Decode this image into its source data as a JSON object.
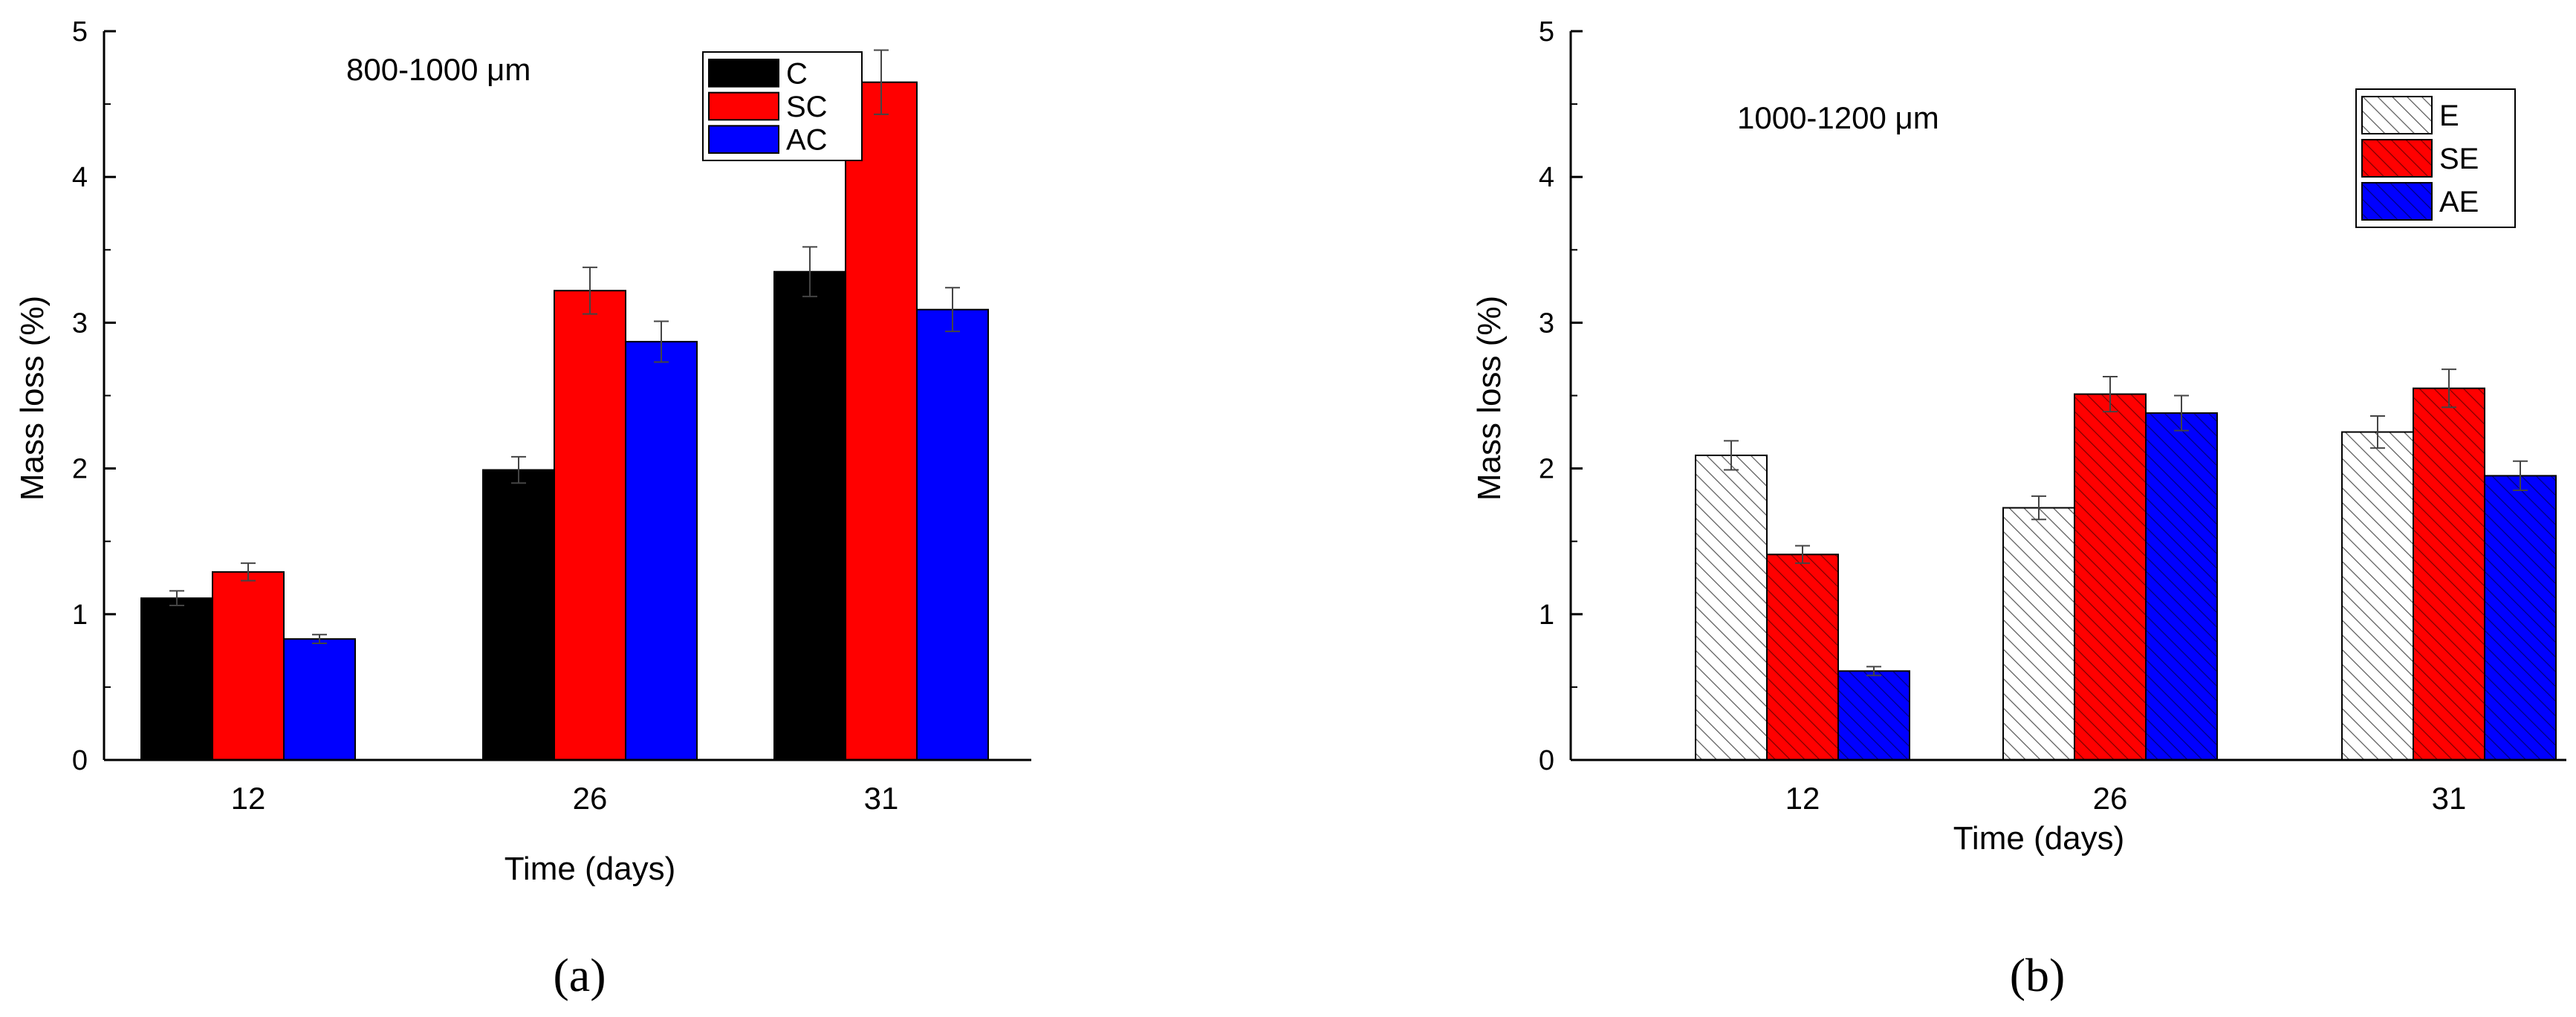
{
  "chart_data": [
    {
      "type": "bar",
      "panel_label": "(a)",
      "annotation": "800-1000 μm",
      "xlabel": "Time (days)",
      "ylabel": "Mass loss (%)",
      "categories": [
        "12",
        "26",
        "31"
      ],
      "ylim": [
        0,
        5
      ],
      "yticks": [
        "0",
        "1",
        "2",
        "3",
        "4",
        "5"
      ],
      "legend_position": "top-right",
      "series": [
        {
          "name": "C",
          "values": [
            1.11,
            1.99,
            3.35
          ],
          "errors": [
            0.05,
            0.09,
            0.17
          ],
          "color": "#000000",
          "pattern": "solid"
        },
        {
          "name": "SC",
          "values": [
            1.29,
            3.22,
            4.65
          ],
          "errors": [
            0.06,
            0.16,
            0.22
          ],
          "color": "#ff0000",
          "pattern": "solid"
        },
        {
          "name": "AC",
          "values": [
            0.83,
            2.87,
            3.09
          ],
          "errors": [
            0.03,
            0.14,
            0.15
          ],
          "color": "#0000ff",
          "pattern": "solid"
        }
      ]
    },
    {
      "type": "bar",
      "panel_label": "(b)",
      "annotation": "1000-1200 μm",
      "xlabel": "Time (days)",
      "ylabel": "Mass loss (%)",
      "categories": [
        "12",
        "26",
        "31"
      ],
      "ylim": [
        0,
        5
      ],
      "yticks": [
        "0",
        "1",
        "2",
        "3",
        "4",
        "5"
      ],
      "legend_position": "top-right",
      "series": [
        {
          "name": "E",
          "values": [
            2.09,
            1.73,
            2.25
          ],
          "errors": [
            0.1,
            0.08,
            0.11
          ],
          "color": "#ffffff",
          "pattern": "hatch"
        },
        {
          "name": "SE",
          "values": [
            1.41,
            2.51,
            2.55
          ],
          "errors": [
            0.06,
            0.12,
            0.13
          ],
          "color": "#ff0000",
          "pattern": "hatch"
        },
        {
          "name": "AE",
          "values": [
            0.61,
            2.38,
            1.95
          ],
          "errors": [
            0.03,
            0.12,
            0.1
          ],
          "color": "#0000ff",
          "pattern": "hatch"
        }
      ]
    }
  ]
}
